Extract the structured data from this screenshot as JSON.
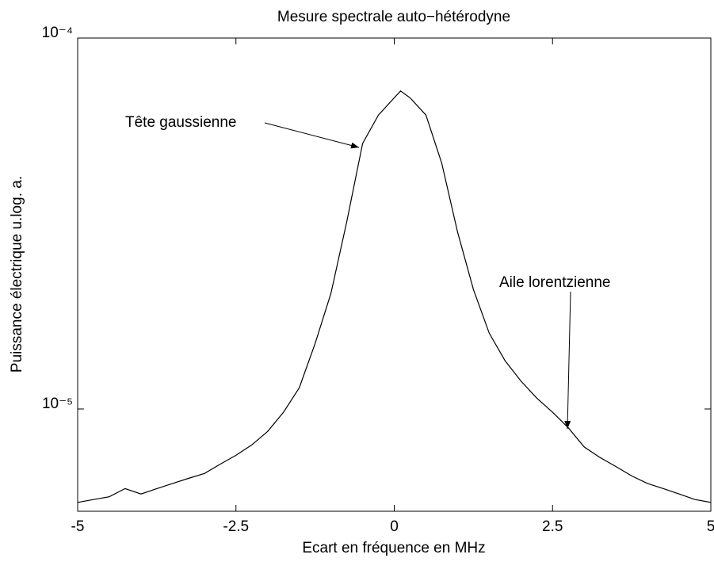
{
  "chart_data": {
    "type": "line",
    "title": "Mesure spectrale auto−hétérodyne",
    "x_label": "Ecart en fréquence en MHz",
    "y_label": "Puissance électrique u.log. a.",
    "log_y": true,
    "color": "#000000",
    "xlim": [
      -5,
      5
    ],
    "xticks": [
      -5,
      -2.5,
      0,
      2.5,
      5
    ],
    "ylim": [
      5.3e-06,
      0.0001
    ],
    "yticks": [
      {
        "value": 1e-05,
        "label": "10⁻⁵"
      },
      {
        "value": 0.0001,
        "label": "10⁻⁴"
      }
    ],
    "x": [
      -5,
      -4.75,
      -4.5,
      -4.25,
      -4,
      -3.75,
      -3.5,
      -3.25,
      -3,
      -2.75,
      -2.5,
      -2.25,
      -2,
      -1.75,
      -1.5,
      -1.25,
      -1,
      -0.75,
      -0.5,
      -0.25,
      0,
      0.1,
      0.25,
      0.5,
      0.75,
      1,
      1.25,
      1.5,
      1.75,
      2,
      2.25,
      2.5,
      2.75,
      3,
      3.25,
      3.5,
      3.75,
      4,
      4.25,
      4.5,
      4.75,
      5
    ],
    "values": [
      5.6e-06,
      5.7e-06,
      5.8e-06,
      6.1e-06,
      5.9e-06,
      6.1e-06,
      6.3e-06,
      6.5e-06,
      6.7e-06,
      7.1e-06,
      7.5e-06,
      8e-06,
      8.7e-06,
      9.8e-06,
      1.14e-05,
      1.5e-05,
      2.05e-05,
      3.2e-05,
      5.2e-05,
      6.2e-05,
      6.9e-05,
      7.2e-05,
      6.9e-05,
      6.2e-05,
      4.6e-05,
      3e-05,
      2.1e-05,
      1.6e-05,
      1.35e-05,
      1.19e-05,
      1.07e-05,
      9.8e-06,
      8.9e-06,
      7.9e-06,
      7.4e-06,
      7e-06,
      6.6e-06,
      6.3e-06,
      6.1e-06,
      5.9e-06,
      5.7e-06,
      5.6e-06
    ],
    "annotations": [
      "Tête gaussienne",
      "Aile lorentzienne"
    ]
  }
}
